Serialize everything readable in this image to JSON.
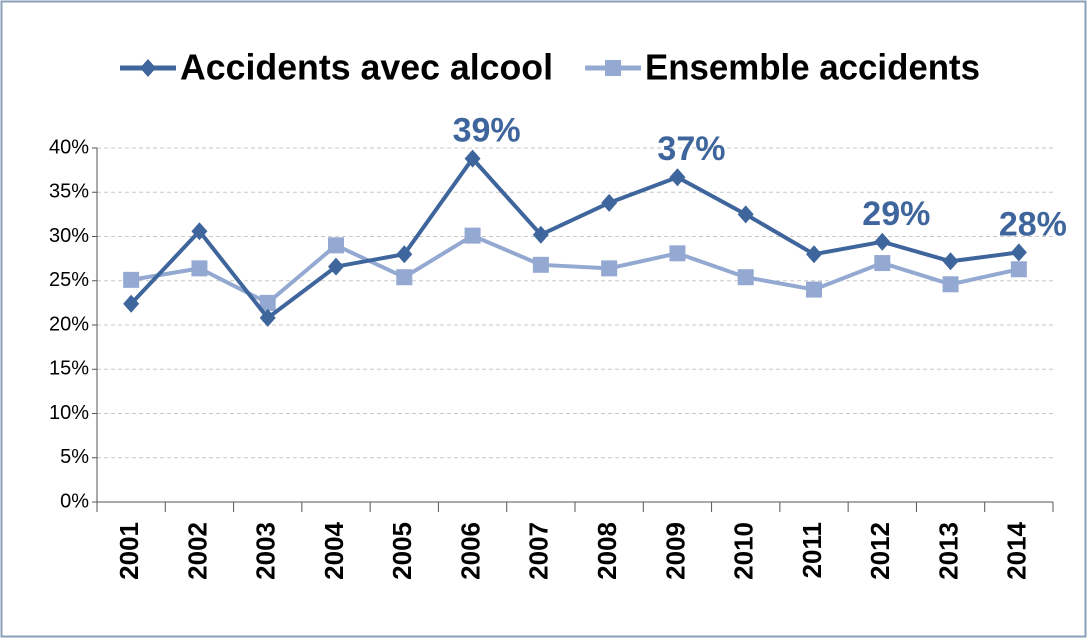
{
  "chart_data": {
    "type": "line",
    "categories": [
      "2001",
      "2002",
      "2003",
      "2004",
      "2005",
      "2006",
      "2007",
      "2008",
      "2009",
      "2010",
      "2011",
      "2012",
      "2013",
      "2014"
    ],
    "series": [
      {
        "name": "Accidents avec alcool",
        "color": "#3f669c",
        "marker": "diamond",
        "values": [
          22.4,
          30.6,
          20.8,
          26.6,
          28.0,
          38.8,
          30.2,
          33.8,
          36.7,
          32.5,
          28.0,
          29.4,
          27.2,
          28.2
        ],
        "value_labels": [
          null,
          null,
          null,
          null,
          null,
          "39%",
          null,
          null,
          "37%",
          null,
          null,
          "29%",
          null,
          "28%"
        ]
      },
      {
        "name": "Ensemble accidents",
        "color": "#94a9d1",
        "marker": "square",
        "values": [
          25.1,
          26.4,
          22.5,
          29.0,
          25.4,
          30.1,
          26.8,
          26.4,
          28.1,
          25.4,
          24.0,
          27.0,
          24.6,
          26.3
        ]
      }
    ],
    "ylim": [
      0,
      40
    ],
    "yticks": [
      {
        "value": 0,
        "label": "0%"
      },
      {
        "value": 5,
        "label": "5%"
      },
      {
        "value": 10,
        "label": "10%"
      },
      {
        "value": 15,
        "label": "15%"
      },
      {
        "value": 20,
        "label": "20%"
      },
      {
        "value": 25,
        "label": "25%"
      },
      {
        "value": 30,
        "label": "30%"
      },
      {
        "value": 35,
        "label": "35%"
      },
      {
        "value": 40,
        "label": "40%"
      }
    ],
    "grid": true,
    "legend": "top"
  }
}
